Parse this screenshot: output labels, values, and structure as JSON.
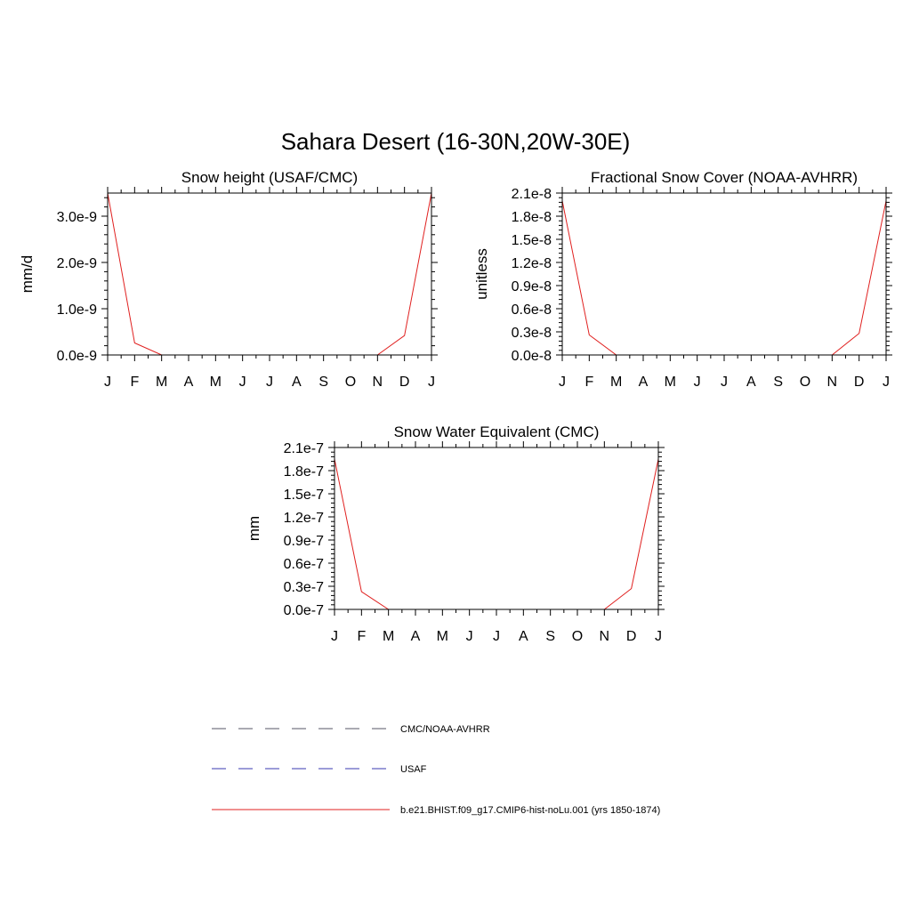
{
  "figure": {
    "title": "Sahara Desert (16-30N,20W-30E)"
  },
  "colors": {
    "model": "#e0201f",
    "obs_cmc": "#555566",
    "obs_usaf": "#3a3ab0",
    "axis": "#000000"
  },
  "legend": {
    "placement": "bottom",
    "entries": [
      {
        "label": "CMC/NOAA-AVHRR",
        "style": "dashed",
        "color": "#555566"
      },
      {
        "label": "USAF",
        "style": "dashed",
        "color": "#3a3ab0"
      },
      {
        "label": "b.e21.BHIST.f09_g17.CMIP6-hist-noLu.001 (yrs 1850-1874)",
        "style": "solid",
        "color": "#e0201f"
      }
    ]
  },
  "chart_data": [
    {
      "type": "line",
      "title": "Snow height (USAF/CMC)",
      "ylabel": "mm/d",
      "xlabel": "",
      "categories": [
        "J",
        "F",
        "M",
        "A",
        "M",
        "J",
        "J",
        "A",
        "S",
        "O",
        "N",
        "D",
        "J"
      ],
      "ylim": [
        0,
        3.5e-09
      ],
      "yticks": [
        0,
        1e-09,
        2e-09,
        3e-09
      ],
      "ytick_labels": [
        "0.0e-9",
        "1.0e-9",
        "2.0e-9",
        "3.0e-9"
      ],
      "grid": false,
      "series": [
        {
          "name": "b.e21.BHIST.f09_g17.CMIP6-hist-noLu.001 (yrs 1850-1874)",
          "style": "solid",
          "values": [
            3.5e-09,
            2.6e-10,
            0,
            0,
            0,
            0,
            0,
            0,
            0,
            0,
            0,
            4.2e-10,
            3.5e-09
          ]
        },
        {
          "name": "CMC/NOAA-AVHRR",
          "style": "dashed",
          "values": [
            0,
            0,
            0,
            0,
            0,
            0,
            0,
            0,
            0,
            0,
            0,
            0,
            0
          ]
        },
        {
          "name": "USAF",
          "style": "dashed",
          "values": [
            0,
            0,
            0,
            0,
            0,
            0,
            0,
            0,
            0,
            0,
            0,
            0,
            0
          ]
        }
      ]
    },
    {
      "type": "line",
      "title": "Fractional Snow Cover (NOAA-AVHRR)",
      "ylabel": "unitless",
      "xlabel": "",
      "categories": [
        "J",
        "F",
        "M",
        "A",
        "M",
        "J",
        "J",
        "A",
        "S",
        "O",
        "N",
        "D",
        "J"
      ],
      "ylim": [
        0,
        2.1e-08
      ],
      "yticks": [
        0,
        3e-09,
        6e-09,
        9e-09,
        1.2e-08,
        1.5e-08,
        1.8e-08,
        2.1e-08
      ],
      "ytick_labels": [
        "0.0e-8",
        "0.3e-8",
        "0.6e-8",
        "0.9e-8",
        "1.2e-8",
        "1.5e-8",
        "1.8e-8",
        "2.1e-8"
      ],
      "grid": false,
      "series": [
        {
          "name": "b.e21.BHIST.f09_g17.CMIP6-hist-noLu.001 (yrs 1850-1874)",
          "style": "solid",
          "values": [
            2e-08,
            2.6e-09,
            0,
            0,
            0,
            0,
            0,
            0,
            0,
            0,
            0,
            2.8e-09,
            2e-08
          ]
        },
        {
          "name": "CMC/NOAA-AVHRR",
          "style": "dashed",
          "values": [
            0,
            0,
            0,
            0,
            0,
            0,
            0,
            0,
            0,
            0,
            0,
            0,
            0
          ]
        }
      ]
    },
    {
      "type": "line",
      "title": "Snow Water Equivalent (CMC)",
      "ylabel": "mm",
      "xlabel": "",
      "categories": [
        "J",
        "F",
        "M",
        "A",
        "M",
        "J",
        "J",
        "A",
        "S",
        "O",
        "N",
        "D",
        "J"
      ],
      "ylim": [
        0,
        2.1e-07
      ],
      "yticks": [
        0,
        3e-08,
        6e-08,
        9e-08,
        1.2e-07,
        1.5e-07,
        1.8e-07,
        2.1e-07
      ],
      "ytick_labels": [
        "0.0e-7",
        "0.3e-7",
        "0.6e-7",
        "0.9e-7",
        "1.2e-7",
        "1.5e-7",
        "1.8e-7",
        "2.1e-7"
      ],
      "grid": false,
      "series": [
        {
          "name": "b.e21.BHIST.f09_g17.CMIP6-hist-noLu.001 (yrs 1850-1874)",
          "style": "solid",
          "values": [
            1.95e-07,
            2.3e-08,
            0,
            0,
            0,
            0,
            0,
            0,
            0,
            0,
            0,
            2.7e-08,
            1.95e-07
          ]
        },
        {
          "name": "CMC/NOAA-AVHRR",
          "style": "dashed",
          "values": [
            0,
            0,
            0,
            0,
            0,
            0,
            0,
            0,
            0,
            0,
            0,
            0,
            0
          ]
        }
      ]
    }
  ]
}
